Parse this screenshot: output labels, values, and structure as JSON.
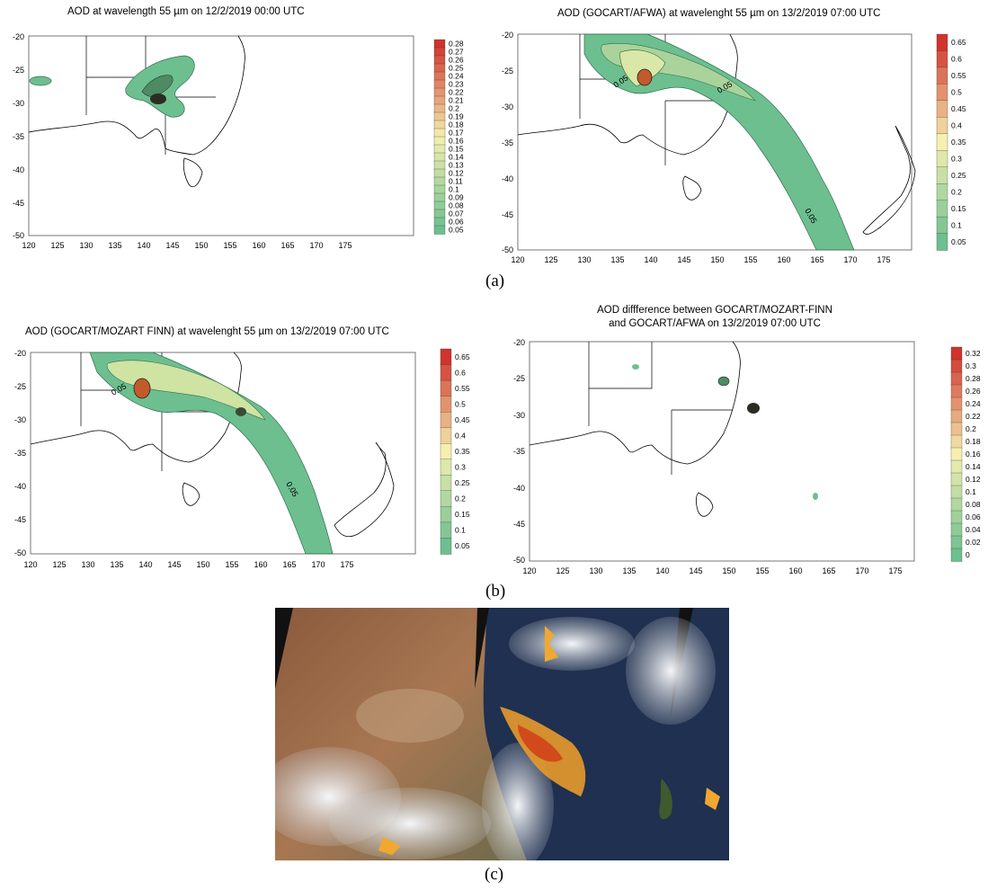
{
  "panels": [
    {
      "title_lines": [
        "AOD at wavelength 55 µm on 12/2/2019 00:00 UTC"
      ],
      "colorbar": [
        "0.28",
        "0.27",
        "0.26",
        "0.25",
        "0.24",
        "0.23",
        "0.22",
        "0.21",
        "0.2",
        "0.19",
        "0.18",
        "0.17",
        "0.16",
        "0.15",
        "0.14",
        "0.13",
        "0.12",
        "0.11",
        "0.1",
        "0.09",
        "0.08",
        "0.07",
        "0.06",
        "0.05"
      ]
    },
    {
      "title_lines": [
        "AOD (GOCART/AFWA) at wavelenght 55 µm on 13/2/2019 07:00 UTC"
      ],
      "colorbar": [
        "0.65",
        "0.6",
        "0.55",
        "0.5",
        "0.45",
        "0.4",
        "0.35",
        "0.3",
        "0.25",
        "0.2",
        "0.15",
        "0.1",
        "0.05"
      ]
    },
    {
      "title_lines": [
        "AOD (GOCART/MOZART FINN) at wavelenght 55 µm on 13/2/2019 07:00 UTC"
      ],
      "colorbar": [
        "0.65",
        "0.6",
        "0.55",
        "0.5",
        "0.45",
        "0.4",
        "0.35",
        "0.3",
        "0.25",
        "0.2",
        "0.15",
        "0.1",
        "0.05"
      ]
    },
    {
      "title_lines": [
        "AOD diffference between GOCART/MOZART-FINN",
        "and GOCART/AFWA on 13/2/2019 07:00 UTC"
      ],
      "colorbar": [
        "0.32",
        "0.3",
        "0.28",
        "0.26",
        "0.24",
        "0.22",
        "0.2",
        "0.18",
        "0.16",
        "0.14",
        "0.12",
        "0.1",
        "0.08",
        "0.06",
        "0.04",
        "0.02",
        "0"
      ]
    }
  ],
  "axes": {
    "x_ticks": [
      "120",
      "125",
      "130",
      "135",
      "140",
      "145",
      "150",
      "155",
      "160",
      "165",
      "170",
      "175"
    ],
    "y_ticks_a1": [
      "-20",
      "-25",
      "-30",
      "-35",
      "-40",
      "-45",
      "-50"
    ]
  },
  "contour_labels": [
    "0.05",
    "0.05",
    "0.05",
    "0.05",
    "0.05"
  ],
  "subfigure_labels": {
    "a": "(a)",
    "b": "(b)",
    "c": "(c)"
  },
  "colors": {
    "aod_low": "#6dbf8f",
    "aod_mid": "#f5f0b0",
    "aod_high": "#d0342c",
    "land_outline": "#000000"
  }
}
